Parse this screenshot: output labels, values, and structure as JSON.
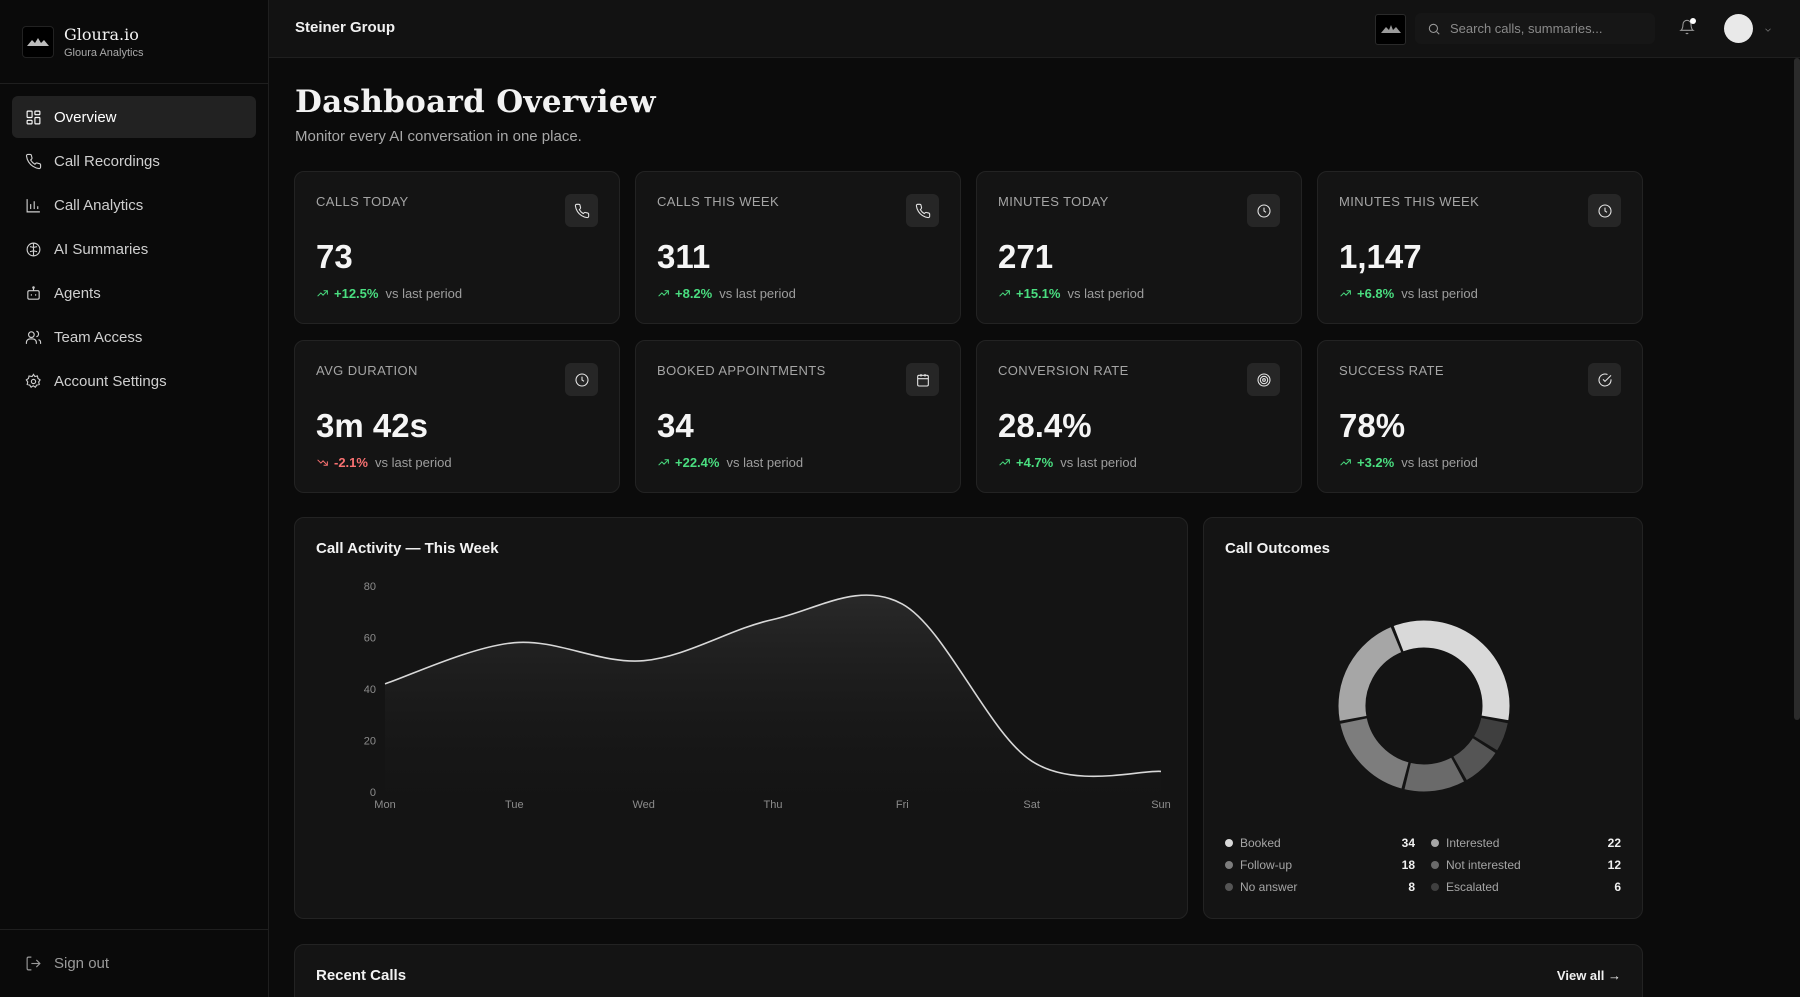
{
  "brand": {
    "name": "Gloura.io",
    "sub": "Gloura Analytics"
  },
  "sidebar": {
    "items": [
      {
        "label": "Overview",
        "icon": "grid-icon",
        "active": true
      },
      {
        "label": "Call Recordings",
        "icon": "phone-icon"
      },
      {
        "label": "Call Analytics",
        "icon": "bar-chart-icon"
      },
      {
        "label": "AI Summaries",
        "icon": "brain-icon"
      },
      {
        "label": "Agents",
        "icon": "bot-icon"
      },
      {
        "label": "Team Access",
        "icon": "users-icon"
      },
      {
        "label": "Account Settings",
        "icon": "gear-icon"
      }
    ],
    "signout": "Sign out"
  },
  "header": {
    "org": "Steiner Group",
    "search_placeholder": "Search calls, summaries..."
  },
  "page": {
    "title": "Dashboard Overview",
    "subtitle": "Monitor every AI conversation in one place."
  },
  "stats": [
    {
      "label": "CALLS TODAY",
      "value": "73",
      "delta": "+12.5%",
      "dir": "up",
      "vs": "vs last period",
      "icon": "phone-icon"
    },
    {
      "label": "CALLS THIS WEEK",
      "value": "311",
      "delta": "+8.2%",
      "dir": "up",
      "vs": "vs last period",
      "icon": "phone-icon"
    },
    {
      "label": "MINUTES TODAY",
      "value": "271",
      "delta": "+15.1%",
      "dir": "up",
      "vs": "vs last period",
      "icon": "clock-icon"
    },
    {
      "label": "MINUTES THIS WEEK",
      "value": "1,147",
      "delta": "+6.8%",
      "dir": "up",
      "vs": "vs last period",
      "icon": "clock-icon"
    },
    {
      "label": "AVG DURATION",
      "value": "3m 42s",
      "delta": "-2.1%",
      "dir": "down",
      "vs": "vs last period",
      "icon": "clock-icon"
    },
    {
      "label": "BOOKED APPOINTMENTS",
      "value": "34",
      "delta": "+22.4%",
      "dir": "up",
      "vs": "vs last period",
      "icon": "calendar-icon"
    },
    {
      "label": "CONVERSION RATE",
      "value": "28.4%",
      "delta": "+4.7%",
      "dir": "up",
      "vs": "vs last period",
      "icon": "target-icon"
    },
    {
      "label": "SUCCESS RATE",
      "value": "78%",
      "delta": "+3.2%",
      "dir": "up",
      "vs": "vs last period",
      "icon": "check-circle-icon"
    }
  ],
  "activity": {
    "title": "Call Activity — This Week"
  },
  "outcomes": {
    "title": "Call Outcomes"
  },
  "recent": {
    "title": "Recent Calls",
    "view_all": "View all →"
  },
  "chart_data": [
    {
      "type": "area",
      "title": "Call Activity — This Week",
      "categories": [
        "Mon",
        "Tue",
        "Wed",
        "Thu",
        "Fri",
        "Sat",
        "Sun"
      ],
      "values": [
        42,
        58,
        51,
        67,
        73,
        12,
        8
      ],
      "ylim": [
        0,
        80
      ],
      "yticks": [
        0,
        20,
        40,
        60,
        80
      ],
      "grid": false
    },
    {
      "type": "pie",
      "title": "Call Outcomes",
      "donut": true,
      "slices": [
        {
          "label": "Booked",
          "value": 34,
          "color": "#d9d9d9"
        },
        {
          "label": "Interested",
          "value": 22,
          "color": "#a6a6a6"
        },
        {
          "label": "Follow-up",
          "value": 18,
          "color": "#7d7d7d"
        },
        {
          "label": "Not interested",
          "value": 12,
          "color": "#6a6a6a"
        },
        {
          "label": "No answer",
          "value": 8,
          "color": "#555555"
        },
        {
          "label": "Escalated",
          "value": 6,
          "color": "#3f3f3f"
        }
      ],
      "ring_order": [
        "Booked",
        "Escalated",
        "No answer",
        "Not interested",
        "Follow-up",
        "Interested"
      ]
    }
  ]
}
